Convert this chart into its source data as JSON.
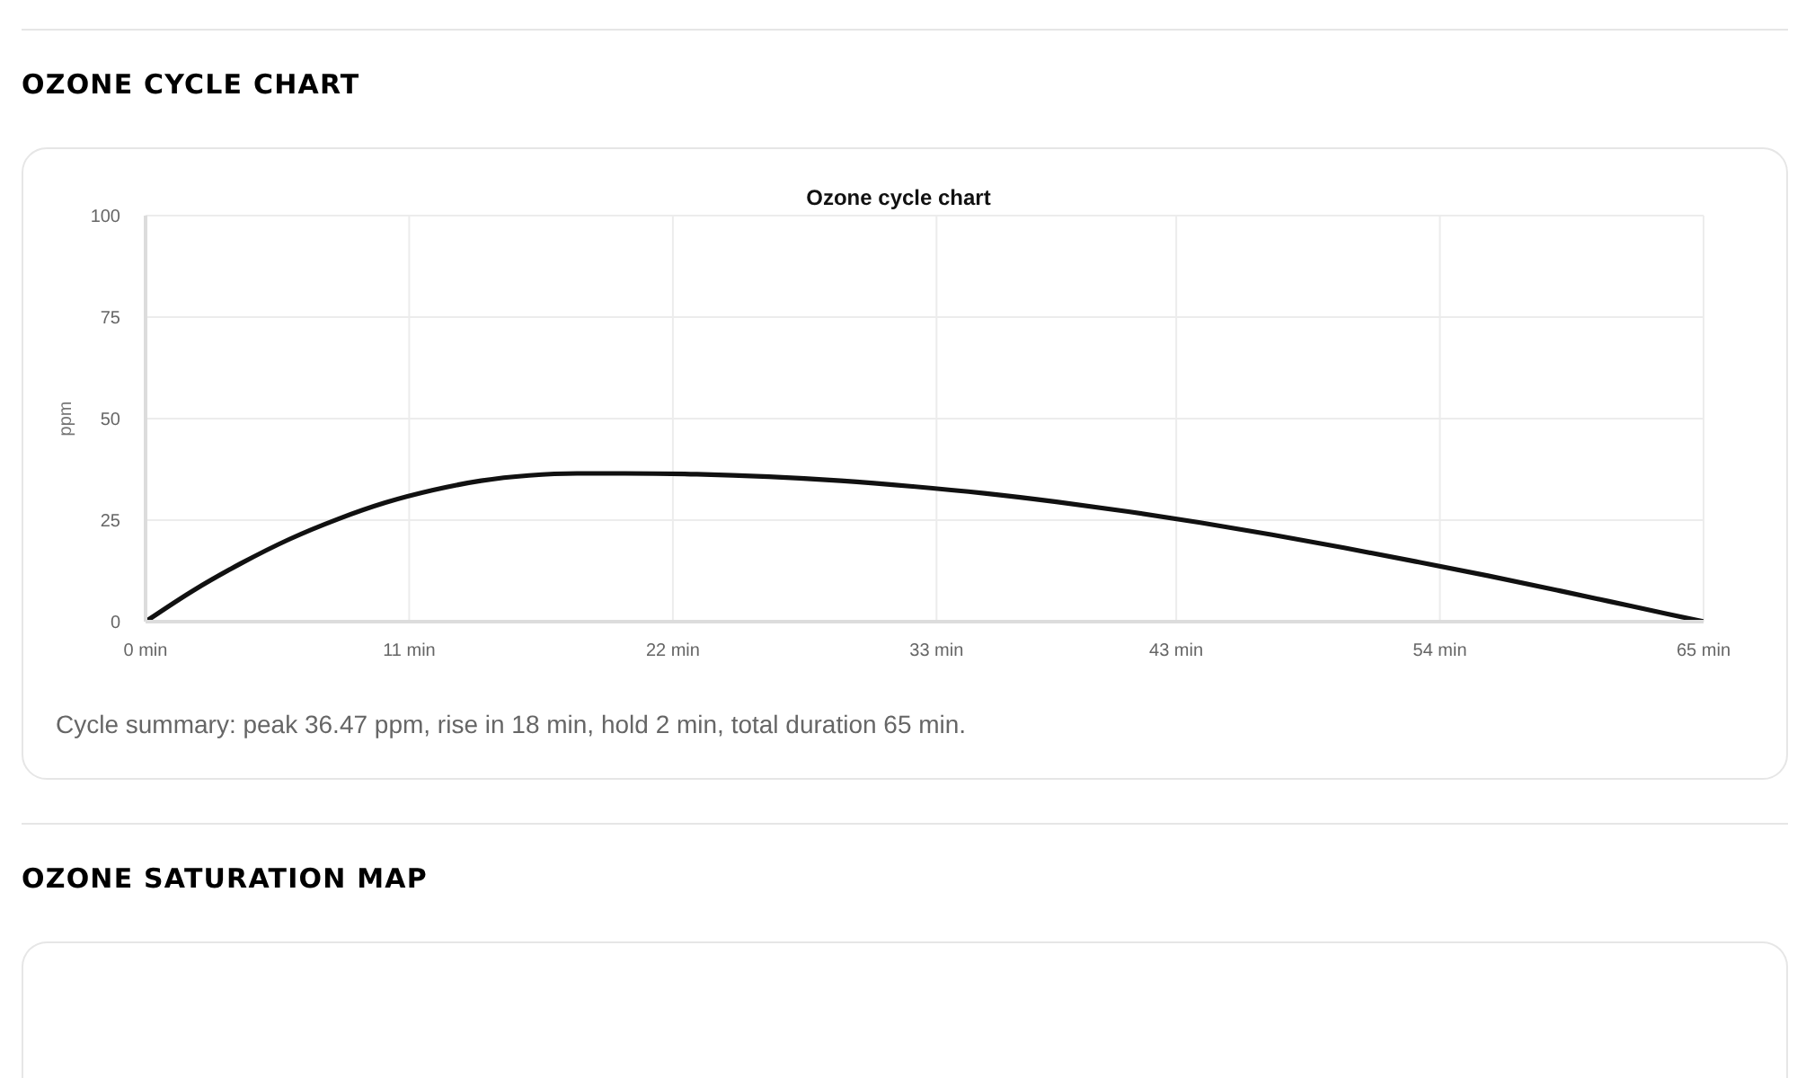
{
  "chart_data": {
    "type": "line",
    "title": "OZONE CYCLE CHART",
    "subtitle": "Ozone cycle chart",
    "ylabel": "ppm",
    "annotations": [
      "Cycle summary: peak 36.47 ppm, rise in 18 min, hold 2 min, total duration 65 min.",
      "OZONE SATURATION MAP"
    ],
    "x": [
      0,
      2,
      4,
      6,
      8,
      10,
      12,
      14,
      16,
      18,
      20,
      23,
      26,
      29,
      32,
      35,
      38,
      41,
      44,
      47,
      50,
      53,
      56,
      59,
      62,
      65
    ],
    "series": [
      {
        "color": "#111111",
        "values": [
          0,
          7.7,
          14.4,
          20.3,
          25.2,
          29.3,
          32.4,
          34.7,
          36.0,
          36.5,
          36.5,
          36.3,
          35.7,
          34.7,
          33.3,
          31.6,
          29.5,
          27.1,
          24.4,
          21.4,
          18.2,
          14.8,
          11.3,
          7.6,
          3.8,
          0
        ]
      }
    ],
    "xlim": [
      0,
      65
    ],
    "xticks": [
      {
        "value": 0,
        "label": "0 min"
      },
      {
        "value": 11,
        "label": "11 min"
      },
      {
        "value": 22,
        "label": "22 min"
      },
      {
        "value": 33,
        "label": "33 min"
      },
      {
        "value": 43,
        "label": "43 min"
      },
      {
        "value": 54,
        "label": "54 min"
      },
      {
        "value": 65,
        "label": "65 min"
      }
    ],
    "ylim": [
      0,
      100
    ],
    "yticks": [
      0,
      25,
      50,
      75,
      100
    ],
    "grid": true,
    "marker": "none",
    "legend": false
  }
}
